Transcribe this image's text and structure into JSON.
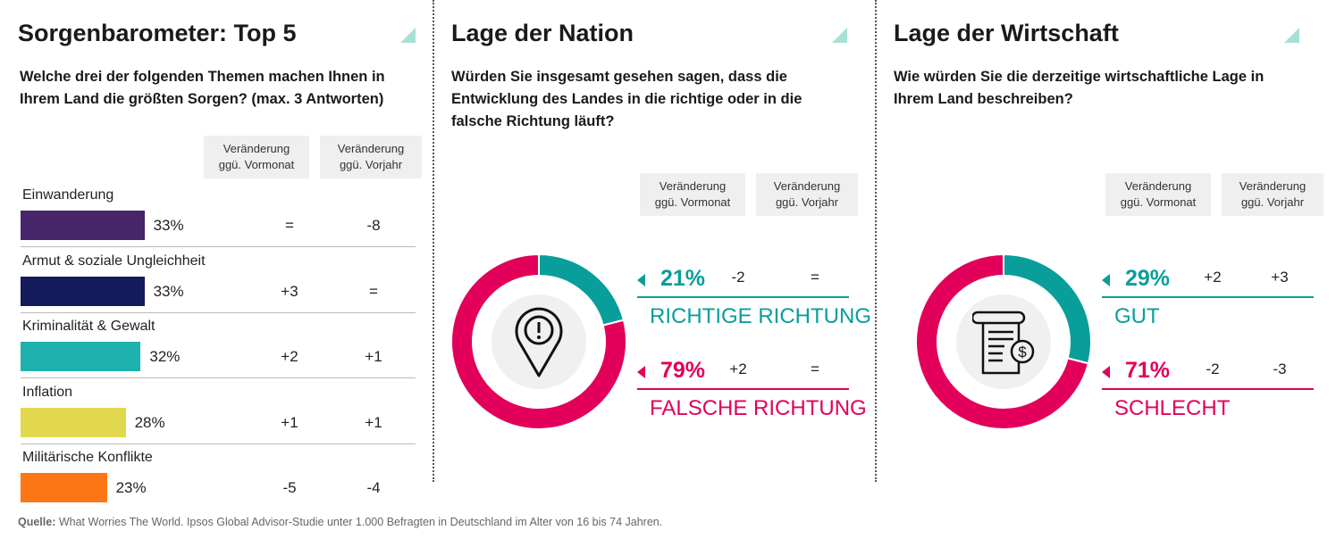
{
  "panel1": {
    "title": "Sorgenbarometer: Top 5",
    "question": "Welche drei der folgenden Themen machen Ihnen in Ihrem Land die größten Sorgen? (max. 3 Antworten)",
    "col1": [
      "Veränderung",
      "ggü. Vormonat"
    ],
    "col2": [
      "Veränderung",
      "ggü. Vorjahr"
    ]
  },
  "panel2": {
    "title": "Lage der Nation",
    "question": "Würden Sie insgesamt gesehen sagen, dass die Entwicklung des Landes in die richtige oder in die falsche Richtung läuft?",
    "col1": [
      "Veränderung",
      "ggü. Vormonat"
    ],
    "col2": [
      "Veränderung",
      "ggü. Vorjahr"
    ],
    "icon": "location-pin-alert-icon"
  },
  "panel3": {
    "title": "Lage der Wirtschaft",
    "question": "Wie würden Sie die derzeitige wirtschaftliche Lage in Ihrem Land beschreiben?",
    "col1": [
      "Veränderung",
      "ggü. Vormonat"
    ],
    "col2": [
      "Veränderung",
      "ggü. Vorjahr"
    ],
    "icon": "invoice-dollar-icon"
  },
  "source": {
    "label": "Quelle:",
    "text": " What Worries The World. Ipsos Global Advisor-Studie unter 1.000 Befragten in Deutschland im Alter von 16 bis 74 Jahren."
  },
  "chart_data": [
    {
      "type": "bar",
      "orientation": "horizontal",
      "categories": [
        "Einwanderung",
        "Armut & soziale Ungleichheit",
        "Kriminalität & Gewalt",
        "Inflation",
        "Militärische Konflikte"
      ],
      "values": [
        33,
        33,
        32,
        28,
        23
      ],
      "labels": [
        "33%",
        "33%",
        "32%",
        "28%",
        "23%"
      ],
      "colors": [
        "#46256a",
        "#141b5a",
        "#1fb1ad",
        "#e1d84d",
        "#fd7615"
      ],
      "change_month": [
        "=",
        "+3",
        "+2",
        "+1",
        "-5"
      ],
      "change_year": [
        "-8",
        "=",
        "+1",
        "+1",
        "-4"
      ]
    },
    {
      "type": "pie",
      "donut": true,
      "categories": [
        "RICHTIGE RICHTUNG",
        "FALSCHE RICHTUNG"
      ],
      "values": [
        21,
        79
      ],
      "labels": [
        "21%",
        "79%"
      ],
      "colors": [
        "#099e9a",
        "#e2005a"
      ],
      "change_month": [
        "-2",
        "+2"
      ],
      "change_year": [
        "=",
        "="
      ]
    },
    {
      "type": "pie",
      "donut": true,
      "categories": [
        "GUT",
        "SCHLECHT"
      ],
      "values": [
        29,
        71
      ],
      "labels": [
        "29%",
        "71%"
      ],
      "colors": [
        "#099e9a",
        "#e2005a"
      ],
      "change_month": [
        "+2",
        "-2"
      ],
      "change_year": [
        "+3",
        "-3"
      ]
    }
  ]
}
